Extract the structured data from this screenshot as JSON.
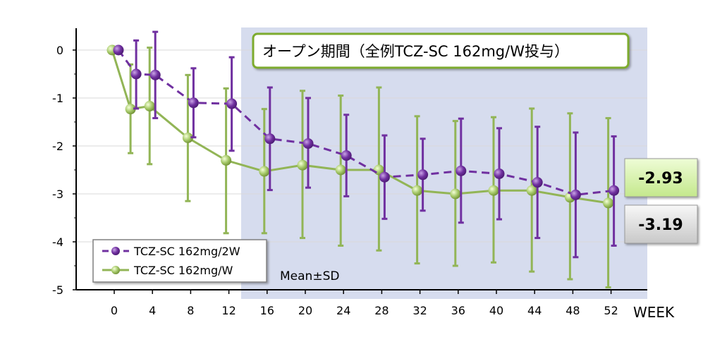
{
  "chart_data": {
    "type": "line",
    "x": [
      0,
      2,
      4,
      8,
      12,
      16,
      20,
      24,
      28,
      32,
      36,
      40,
      44,
      48,
      52
    ],
    "x_ticks": [
      0,
      4,
      8,
      12,
      16,
      20,
      24,
      28,
      32,
      36,
      40,
      44,
      48,
      52
    ],
    "xlabel": "WEEK",
    "y_ticks": [
      0,
      -1,
      -2,
      -3,
      -4,
      -5
    ],
    "ylim": [
      -5,
      0.5
    ],
    "grid": "horizontal",
    "series": [
      {
        "name": "TCZ-SC 162mg/2W",
        "style": "dashed",
        "color": "#7030a0",
        "x": [
          0,
          2,
          4,
          8,
          12,
          16,
          20,
          24,
          28,
          32,
          36,
          40,
          44,
          48,
          52
        ],
        "mean": [
          0,
          -0.5,
          -0.52,
          -1.1,
          -1.12,
          -1.85,
          -1.95,
          -2.2,
          -2.65,
          -2.6,
          -2.52,
          -2.58,
          -2.76,
          -3.02,
          -2.93
        ],
        "sd_high": [
          0,
          0.2,
          0.38,
          -0.38,
          -0.15,
          -0.78,
          -1.0,
          -1.35,
          -1.78,
          -1.85,
          -1.43,
          -1.63,
          -1.6,
          -1.72,
          -1.8
        ],
        "sd_low": [
          0,
          -1.22,
          -1.42,
          -1.82,
          -2.1,
          -2.92,
          -2.87,
          -3.05,
          -3.52,
          -3.35,
          -3.6,
          -3.53,
          -3.92,
          -4.32,
          -4.08
        ]
      },
      {
        "name": "TCZ-SC 162mg/W",
        "style": "solid",
        "color": "#92b556",
        "x": [
          0,
          2,
          4,
          8,
          12,
          16,
          20,
          24,
          28,
          32,
          36,
          40,
          44,
          48,
          52
        ],
        "mean": [
          0,
          -1.23,
          -1.17,
          -1.83,
          -2.3,
          -2.53,
          -2.4,
          -2.5,
          -2.5,
          -2.93,
          -3.0,
          -2.93,
          -2.93,
          -3.07,
          -3.19
        ],
        "sd_high": [
          0,
          -0.3,
          0.05,
          -0.52,
          -0.8,
          -1.23,
          -0.85,
          -0.95,
          -0.78,
          -1.38,
          -1.48,
          -1.4,
          -1.22,
          -1.32,
          -1.42
        ],
        "sd_low": [
          0,
          -2.15,
          -2.38,
          -3.15,
          -3.82,
          -3.82,
          -3.92,
          -4.08,
          -4.18,
          -4.45,
          -4.5,
          -4.43,
          -4.62,
          -4.78,
          -4.95
        ]
      }
    ],
    "period_label": "オープン期間（全例TCZ-SC 162mg/W投与）",
    "annotation": "Mean±SD",
    "end_labels": [
      "-2.93",
      "-3.19"
    ],
    "legend": "bottom-left",
    "colors": {
      "shaded_region": "#d6dcee",
      "period_box_border": "#7dab2f",
      "grid": "#d9d9d9",
      "end_label_green": "#d4f0a8",
      "end_label_gray": "#dcdcdc"
    }
  }
}
